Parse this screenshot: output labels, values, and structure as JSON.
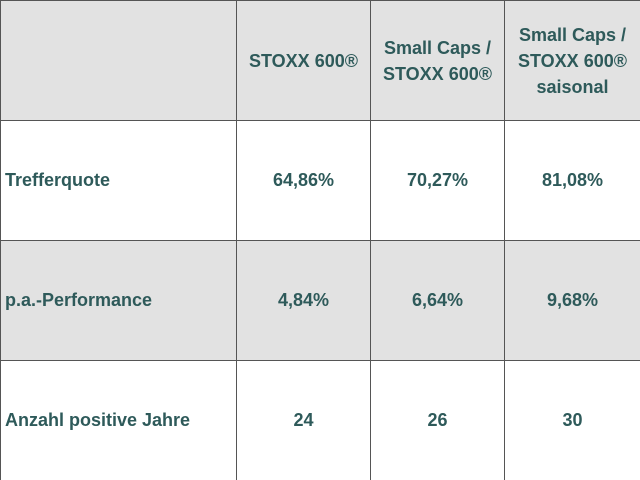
{
  "header": {
    "columns": [
      "STOXX 600®",
      "Small Caps / STOXX 600®",
      "Small Caps / STOXX 600® saisonal"
    ]
  },
  "table": {
    "rows": [
      [
        "Trefferquote",
        "64,86%",
        "70,27%",
        "81,08%"
      ],
      [
        "p.a.-Performance",
        "4,84%",
        "6,64%",
        "9,68%"
      ],
      [
        "Anzahl positive Jahre",
        "24",
        "26",
        "30"
      ]
    ]
  }
}
